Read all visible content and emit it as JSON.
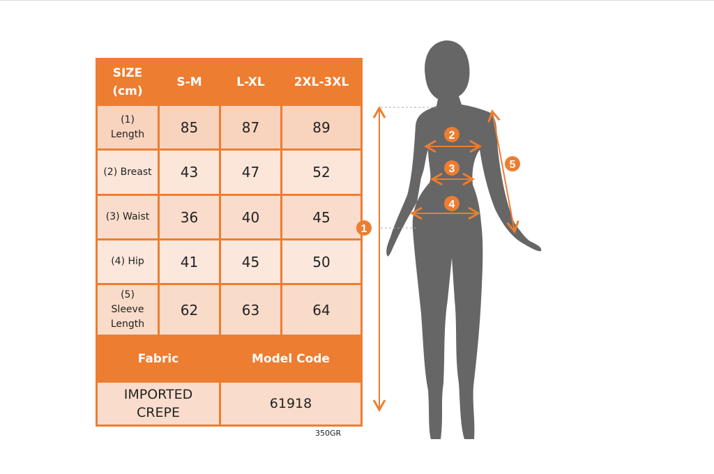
{
  "size_table": {
    "header": [
      "SIZE (cm)",
      "S-M",
      "L-XL",
      "2XL-3XL"
    ],
    "rows": [
      {
        "label": "(1) Length",
        "values": [
          "85",
          "87",
          "89"
        ]
      },
      {
        "label": "(2) Breast",
        "values": [
          "43",
          "47",
          "52"
        ]
      },
      {
        "label": "(3) Waist",
        "values": [
          "36",
          "40",
          "45"
        ]
      },
      {
        "label": "(4) Hip",
        "values": [
          "41",
          "45",
          "50"
        ]
      },
      {
        "label": "(5) Sleeve Length",
        "values": [
          "62",
          "63",
          "64"
        ]
      }
    ]
  },
  "info_table": {
    "fabric_label": "Fabric",
    "model_code_label": "Model Code",
    "fabric": "IMPORTED CREPE",
    "model_code": "61918"
  },
  "weight": "350GR",
  "figure": {
    "markers": [
      "1",
      "2",
      "3",
      "4",
      "5"
    ],
    "accent_color": "#ED7D31",
    "silhouette_color": "#666666"
  }
}
